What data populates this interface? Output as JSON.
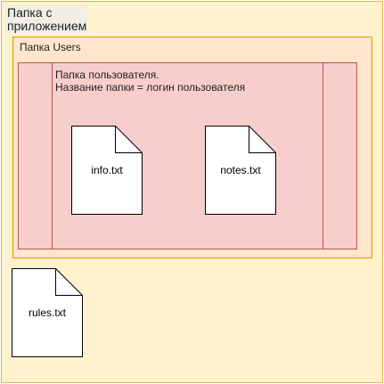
{
  "app_folder": {
    "label": "Папка с приложением",
    "fill_color": "#fff2cc",
    "stroke_color": "#d6b656"
  },
  "users_folder": {
    "label": "Папка Users",
    "fill_color": "#ffe6cc",
    "stroke_color": "#d79b00"
  },
  "user_folder": {
    "caption": "Папка пользователя.\nНазвание папки = логин пользователя",
    "fill_color": "#f8cecc",
    "stroke_color": "#b85450"
  },
  "files": {
    "info": "info.txt",
    "notes": "notes.txt",
    "rules": "rules.txt"
  }
}
